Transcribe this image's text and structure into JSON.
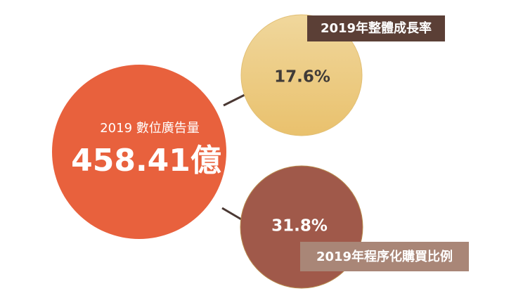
{
  "main": {
    "label": "2019 數位廣告量",
    "value": "458.41億"
  },
  "growth": {
    "value": "17.6%",
    "label": "2019年整體成長率"
  },
  "programmatic": {
    "value": "31.8%",
    "label": "2019年程序化購買比例"
  }
}
